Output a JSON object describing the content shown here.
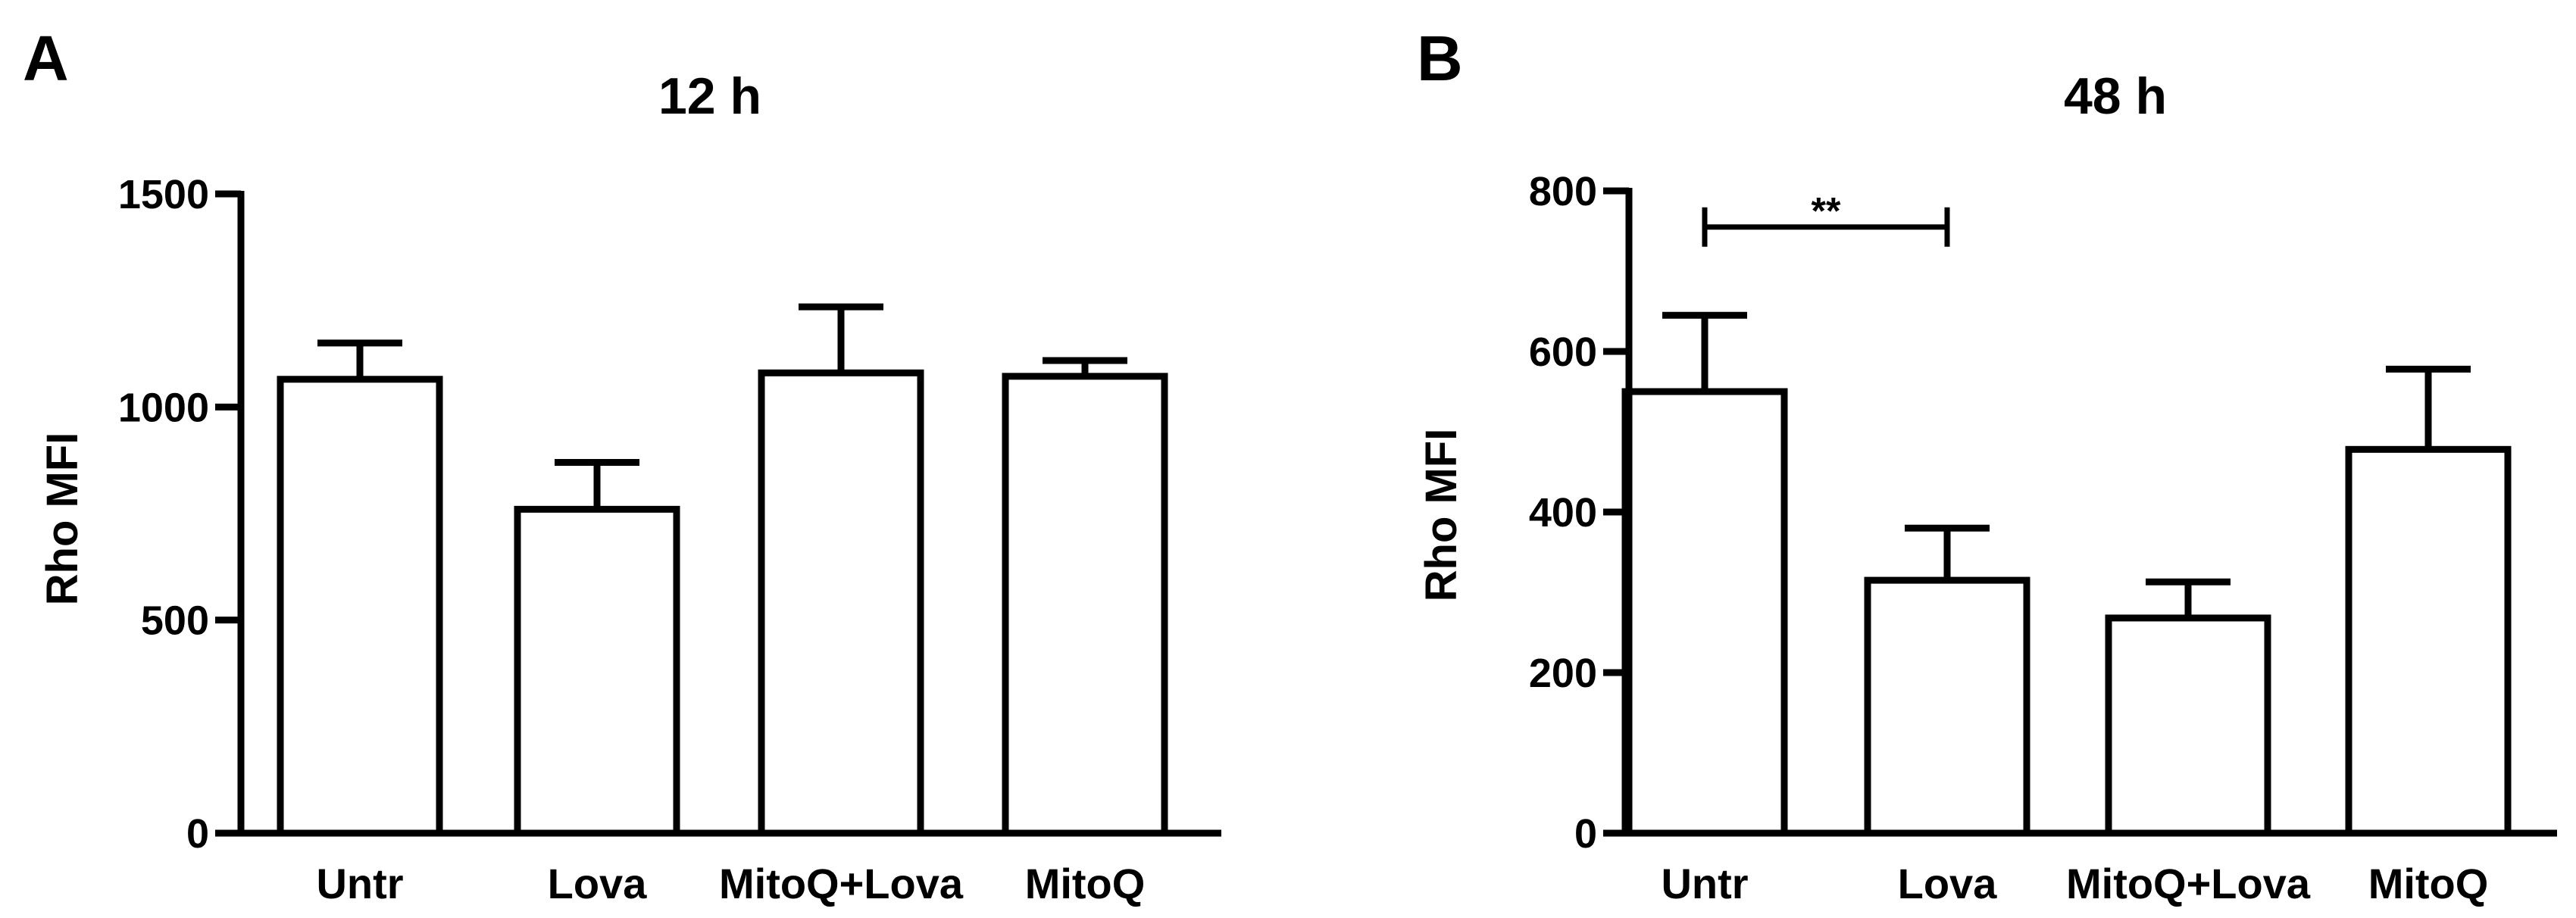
{
  "chart_data": [
    {
      "panel": "A",
      "type": "bar",
      "title": "12 h",
      "xlabel": "",
      "ylabel": "Rho MFI",
      "ylim": [
        0,
        1500
      ],
      "yticks": [
        0,
        500,
        1000,
        1500
      ],
      "categories": [
        "Untr",
        "Lova",
        "MitoQ+Lova",
        "MitoQ"
      ],
      "values": [
        1065,
        760,
        1080,
        1072
      ],
      "errors": [
        85,
        110,
        155,
        37
      ],
      "significance": []
    },
    {
      "panel": "B",
      "type": "bar",
      "title": "48 h",
      "xlabel": "",
      "ylabel": "Rho MFI",
      "ylim": [
        0,
        800
      ],
      "yticks": [
        0,
        200,
        400,
        600,
        800
      ],
      "categories": [
        "Untr",
        "Lova",
        "MitoQ+Lova",
        "MitoQ"
      ],
      "values": [
        550,
        315,
        268,
        478
      ],
      "errors": [
        95,
        65,
        45,
        100
      ],
      "significance": [
        {
          "from": 0,
          "to": 1,
          "label": "**",
          "y": 755
        }
      ]
    }
  ]
}
